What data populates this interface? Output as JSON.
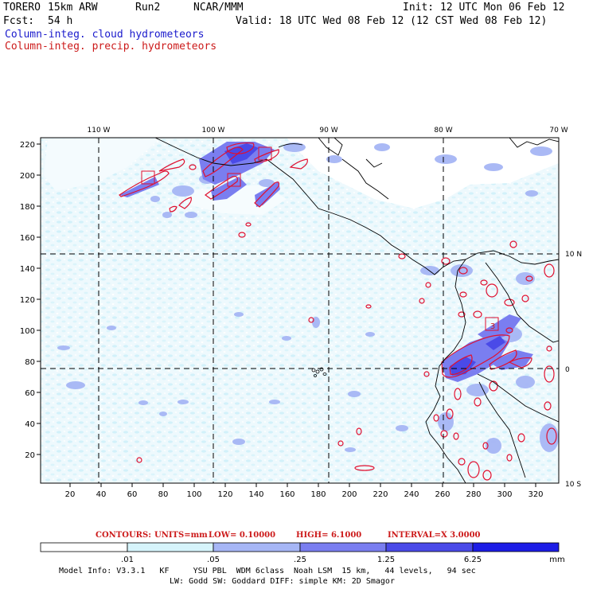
{
  "header": {
    "model": "TORERO",
    "res": "15km ARW",
    "run": "Run2",
    "org": "NCAR/MMM",
    "init": "Init: 12 UTC Mon 06 Feb 12",
    "fcst_label": "Fcst:",
    "fcst_value": "54 h",
    "valid": "Valid: 18 UTC Wed 08 Feb 12 (12 CST Wed 08 Feb 12)"
  },
  "legend_lines": {
    "cloud": "Column-integ. cloud hydrometeors",
    "precip": "Column-integ. precip. hydrometeors"
  },
  "map": {
    "lon_labels": [
      "110 W",
      "100 W",
      "90 W",
      "80 W",
      "70 W"
    ],
    "lat_labels": [
      "10 N",
      "0",
      "10 S"
    ],
    "y_ticks": [
      "220",
      "200",
      "180",
      "160",
      "140",
      "120",
      "100",
      "80",
      "60",
      "40",
      "20"
    ],
    "x_ticks": [
      "20",
      "40",
      "60",
      "80",
      "100",
      "120",
      "140",
      "160",
      "180",
      "200",
      "220",
      "240",
      "260",
      "280",
      "300",
      "320"
    ],
    "box_labels": [
      "3"
    ]
  },
  "contours_line": {
    "label": "CONTOURS:",
    "units": "UNITS=mm",
    "low": "LOW= 0.10000",
    "high": "HIGH= 6.1000",
    "interval": "INTERVAL=X 3.0000"
  },
  "colorbar": {
    "labels": [
      ".01",
      ".05",
      ".25",
      "1.25",
      "6.25"
    ],
    "unit": "mm",
    "colors": [
      "#ffffff",
      "#d6f4fb",
      "#a6b6f5",
      "#7a7ef0",
      "#4a4ae8",
      "#1c1ce6"
    ]
  },
  "model_info": {
    "line1": "Model Info: V3.3.1   KF     YSU PBL  WDM 6class  Noah LSM  15 km,   44 levels,   94 sec",
    "line2": "LW: Godd SW: Goddard DIFF: simple KM: 2D Smagor"
  }
}
